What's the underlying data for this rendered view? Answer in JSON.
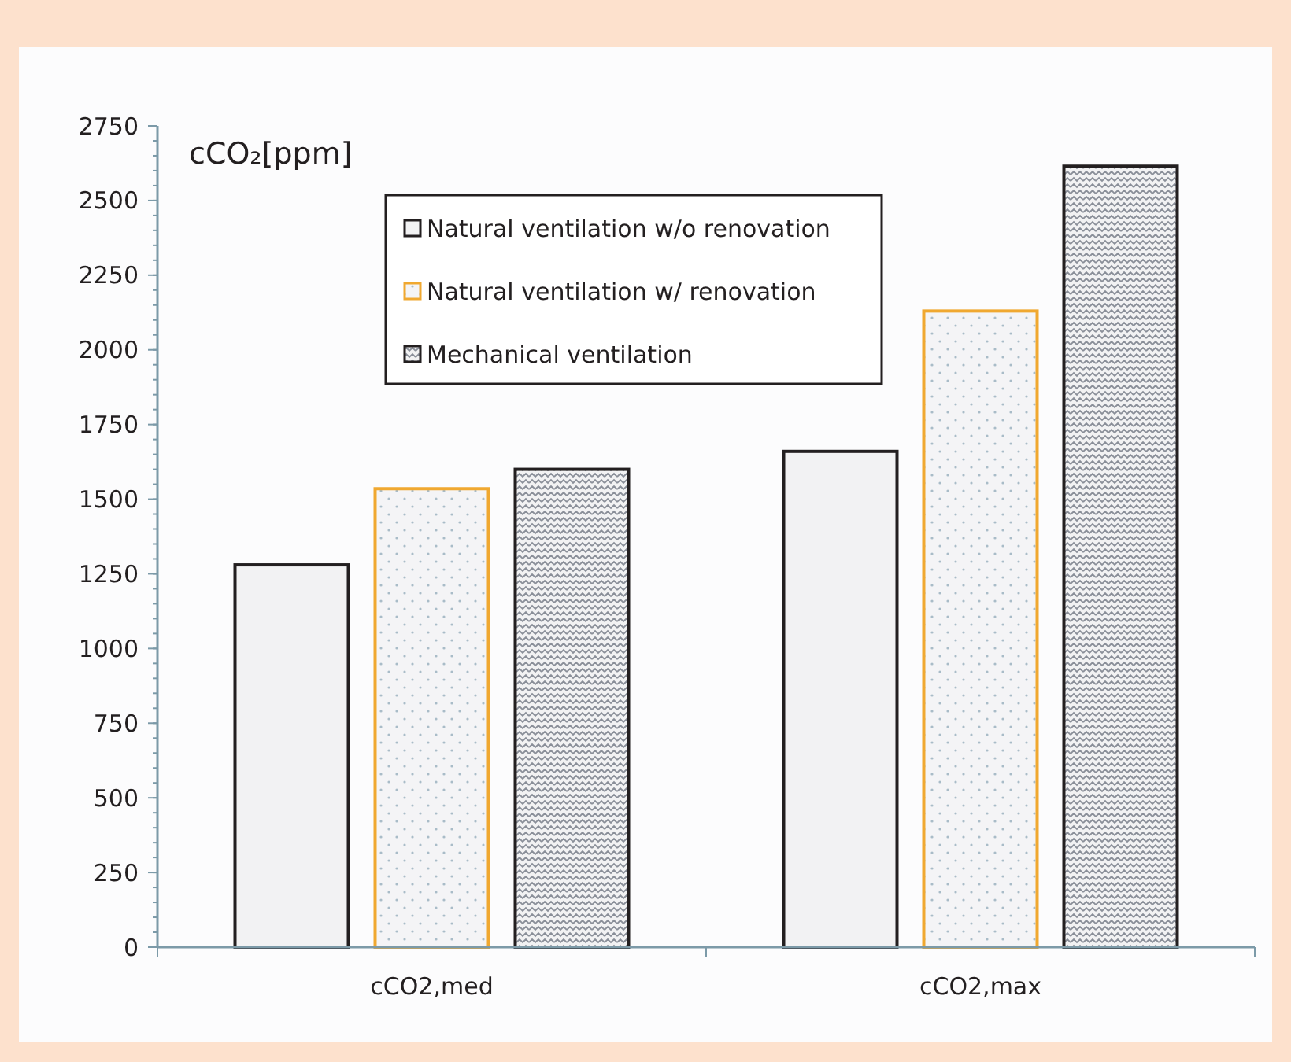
{
  "chart_data": {
    "type": "bar",
    "ylabel": "cCO₂[ppm]",
    "categories": [
      "cCO2,med",
      "cCO2,max"
    ],
    "series": [
      {
        "name": "Natural ventilation w/o renovation",
        "color": "#231f20",
        "values": [
          1280,
          1660
        ]
      },
      {
        "name": "Natural ventilation w/ renovation",
        "color": "#f0a830",
        "values": [
          1535,
          2130
        ]
      },
      {
        "name": "Mechanical ventilation",
        "color": "#231f20",
        "values": [
          1600,
          2615
        ]
      }
    ],
    "ylim": [
      0,
      2750
    ],
    "yticks": [
      0,
      250,
      500,
      750,
      1000,
      1250,
      1500,
      1750,
      2000,
      2250,
      2500,
      2750
    ],
    "grid": false,
    "legend": "top"
  }
}
